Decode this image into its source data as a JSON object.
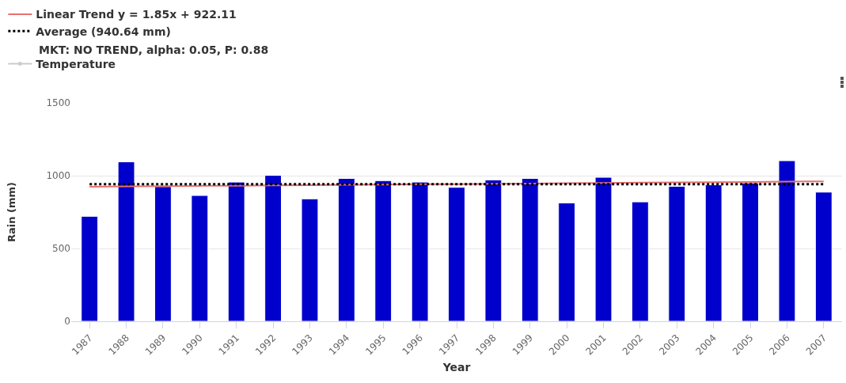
{
  "chart_data": {
    "type": "bar",
    "xlabel": "Year",
    "ylabel": "Rain (mm)",
    "categories": [
      "1987",
      "1988",
      "1989",
      "1990",
      "1991",
      "1992",
      "1993",
      "1994",
      "1995",
      "1996",
      "1997",
      "1998",
      "1999",
      "2000",
      "2001",
      "2002",
      "2003",
      "2004",
      "2005",
      "2006",
      "2007"
    ],
    "series": [
      {
        "color": "#0000cc",
        "values": [
          721,
          1095,
          925,
          864,
          956,
          1002,
          841,
          981,
          966,
          956,
          920,
          971,
          981,
          813,
          989,
          820,
          927,
          937,
          950,
          1103,
          887
        ]
      },
      {
        "type": "line",
        "name": "Linear Trend y = 1.85x + 922.11",
        "color": "#e8706f",
        "values": [
          924,
          926,
          928,
          930,
          931,
          933,
          935,
          937,
          939,
          941,
          942,
          944,
          946,
          948,
          950,
          952,
          954,
          955,
          957,
          959,
          961
        ],
        "line_style": "solid"
      },
      {
        "type": "line",
        "name": "Temperature",
        "color": "#cccccc",
        "values": [
          null,
          null,
          null,
          null,
          null,
          null,
          null,
          null,
          null,
          null,
          null,
          null,
          null,
          null,
          null,
          null,
          null,
          null,
          null,
          null,
          null
        ],
        "marker": "circle"
      }
    ],
    "ref_lines": [
      {
        "axis": "y",
        "value": 941,
        "label": "Average (940.64 mm)",
        "color": "#000000",
        "line_style": "dotted"
      }
    ],
    "annotations": [
      "MKT: NO TREND, alpha: 0.05, P: 0.88"
    ],
    "ylim": [
      0,
      1500
    ],
    "yticks": [
      0,
      500,
      1000,
      1500
    ],
    "grid": "y",
    "legend": "top left"
  }
}
